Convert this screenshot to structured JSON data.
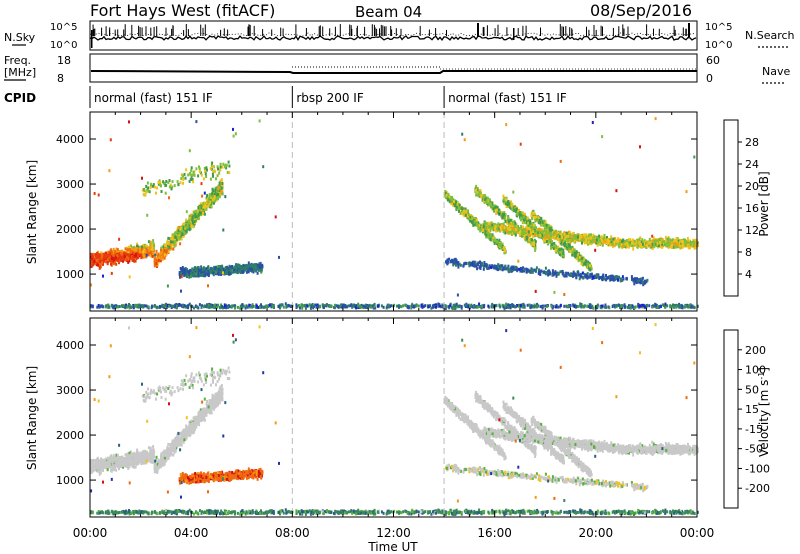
{
  "header": {
    "title": "Fort Hays West (fitACF)",
    "beam": "Beam 04",
    "date": "08/Sep/2016"
  },
  "noise_panel": {
    "left_label": "N.Sky",
    "left_ticks": [
      "10^5",
      "10^0"
    ],
    "right_ticks": [
      "10^5",
      "10^0"
    ],
    "right_label": "N.Search"
  },
  "freq_panel": {
    "left_label": "Freq.",
    "left_unit": "[MHz]",
    "left_ticks": [
      "18",
      "8"
    ],
    "right_ticks": [
      "60",
      "0"
    ],
    "right_label": "Nave"
  },
  "cpid": {
    "label": "CPID",
    "segments": [
      {
        "start": 0,
        "end": 8,
        "label": "normal (fast) 151 IF"
      },
      {
        "start": 8,
        "end": 14,
        "label": "rbsp 200 IF"
      },
      {
        "start": 14,
        "end": 24,
        "label": "normal (fast) 151 IF"
      }
    ]
  },
  "x_axis": {
    "label": "Time UT",
    "range_hours": [
      0,
      24
    ],
    "ticks": [
      {
        "h": 0,
        "label": "00:00"
      },
      {
        "h": 4,
        "label": "04:00"
      },
      {
        "h": 8,
        "label": "08:00"
      },
      {
        "h": 12,
        "label": "12:00"
      },
      {
        "h": 16,
        "label": "16:00"
      },
      {
        "h": 20,
        "label": "20:00"
      },
      {
        "h": 24,
        "label": "00:00"
      }
    ]
  },
  "panels": [
    {
      "name": "Power",
      "ylabel": "Slant Range [km]",
      "yticks": [
        "1000",
        "2000",
        "3000",
        "4000"
      ],
      "colorbar": {
        "label": "Power [dB]",
        "ticks": [
          "4",
          "8",
          "12",
          "16",
          "20",
          "24",
          "28"
        ],
        "colors": [
          "#1f1fd6",
          "#2a4fa8",
          "#2e7d6a",
          "#3f9a4a",
          "#7fbf3a",
          "#f2c21b",
          "#f59a14",
          "#ef6a10",
          "#e63b0e",
          "#d60f0f"
        ]
      }
    },
    {
      "name": "Velocity",
      "ylabel": "Slant Range [km]",
      "yticks": [
        "1000",
        "2000",
        "3000",
        "4000"
      ],
      "colorbar": {
        "label": "Velocity",
        "unit": "[m s",
        "unit_exponent": "-1",
        "unit_close": "]",
        "ticks": [
          "200",
          "100",
          "50",
          "15",
          "-15",
          "-50",
          "-100",
          "-200"
        ],
        "colors": [
          "#2233aa",
          "#2a6080",
          "#3a8a5a",
          "#55b23a",
          "#c8c8c8",
          "#c8c8c8",
          "#f2c21b",
          "#f59a14",
          "#ef6a10",
          "#d60f0f"
        ]
      }
    }
  ],
  "chart_data": [
    {
      "type": "scatter",
      "title": "Power",
      "xlabel": "Time UT",
      "ylabel": "Slant Range [km]",
      "xlim": [
        0,
        24
      ],
      "ylim": [
        180,
        4600
      ],
      "colorbar": {
        "label": "Power [dB]",
        "range": [
          0,
          32
        ]
      },
      "series": [
        {
          "range_start": [
            0.0,
            1300
          ],
          "range_end": [
            3.5,
            2900
          ],
          "power": 24
        },
        {
          "range_start": [
            3.0,
            1100
          ],
          "range_end": [
            5.2,
            3400
          ],
          "power": 16
        },
        {
          "range_start": [
            3.5,
            900
          ],
          "range_end": [
            6.8,
            1300
          ],
          "power": 8
        },
        {
          "range_start": [
            13.8,
            3000
          ],
          "range_end": [
            17.5,
            2200
          ],
          "power": 12
        },
        {
          "range_start": [
            15.0,
            2600
          ],
          "range_end": [
            24.0,
            1800
          ],
          "power": 18
        },
        {
          "range_start": [
            0.0,
            280
          ],
          "range_end": [
            24.0,
            350
          ],
          "power": 6
        }
      ]
    },
    {
      "type": "scatter",
      "title": "Velocity",
      "xlabel": "Time UT",
      "ylabel": "Slant Range [km]",
      "xlim": [
        0,
        24
      ],
      "ylim": [
        180,
        4600
      ],
      "colorbar": {
        "label": "Velocity [m s-1]",
        "range": [
          -200,
          200
        ]
      },
      "series": [
        {
          "range_start": [
            0.0,
            1300
          ],
          "range_end": [
            5.2,
            3400
          ],
          "velocity": 0
        },
        {
          "range_start": [
            3.5,
            900
          ],
          "range_end": [
            6.8,
            1300
          ],
          "velocity": -100
        },
        {
          "range_start": [
            13.8,
            3000
          ],
          "range_end": [
            24.0,
            1800
          ],
          "velocity": 0
        },
        {
          "range_start": [
            0.0,
            280
          ],
          "range_end": [
            24.0,
            350
          ],
          "velocity": 40
        }
      ]
    }
  ]
}
